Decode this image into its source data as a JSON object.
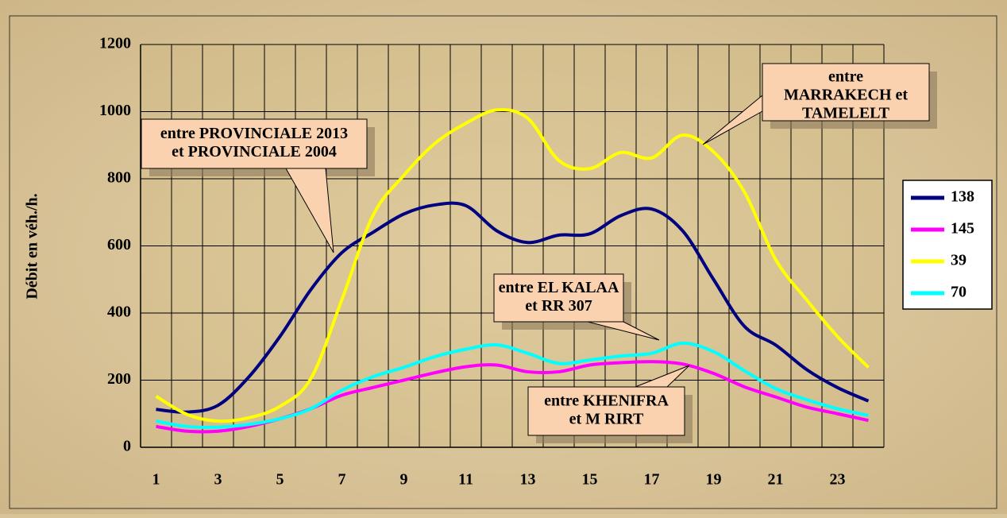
{
  "chart_data": {
    "type": "line",
    "ylabel": "Débit en véh./h.",
    "categories": [
      "1",
      null,
      "3",
      null,
      "5",
      null,
      "7",
      null,
      "9",
      null,
      "11",
      null,
      "13",
      null,
      "15",
      null,
      "17",
      null,
      "19",
      null,
      "21",
      null,
      "23",
      null
    ],
    "series": [
      {
        "name": "138",
        "color": "#000080",
        "values": [
          113,
          105,
          125,
          210,
          330,
          470,
          580,
          640,
          695,
          722,
          720,
          645,
          610,
          632,
          636,
          690,
          710,
          645,
          500,
          360,
          305,
          232,
          178,
          138
        ]
      },
      {
        "name": "145",
        "color": "#ff00ff",
        "values": [
          62,
          48,
          48,
          62,
          85,
          115,
          155,
          178,
          200,
          222,
          240,
          245,
          225,
          225,
          245,
          252,
          255,
          248,
          220,
          180,
          150,
          120,
          100,
          80
        ]
      },
      {
        "name": "39",
        "color": "#ffff00",
        "values": [
          152,
          98,
          78,
          88,
          122,
          205,
          440,
          690,
          810,
          905,
          965,
          1005,
          980,
          855,
          830,
          878,
          862,
          930,
          880,
          760,
          560,
          440,
          330,
          238
        ]
      },
      {
        "name": "70",
        "color": "#00ffff",
        "values": [
          78,
          62,
          60,
          68,
          85,
          115,
          170,
          210,
          238,
          270,
          292,
          305,
          280,
          250,
          260,
          272,
          280,
          310,
          285,
          228,
          175,
          142,
          115,
          95
        ]
      }
    ],
    "ylim": [
      0,
      1200
    ],
    "yticks": [
      0,
      200,
      400,
      600,
      800,
      1000,
      1200
    ],
    "grid": true,
    "legend": "right",
    "annotations": [
      {
        "lines": [
          "entre PROVINCIALE 2013",
          "et PROVINCIALE 2004"
        ]
      },
      {
        "lines": [
          "entre",
          "MARRAKECH et",
          "TAMELELT"
        ]
      },
      {
        "lines": [
          "entre EL KALAA",
          "et RR 307"
        ]
      },
      {
        "lines": [
          "entre KHENIFRA",
          "et M RIRT"
        ]
      }
    ]
  }
}
